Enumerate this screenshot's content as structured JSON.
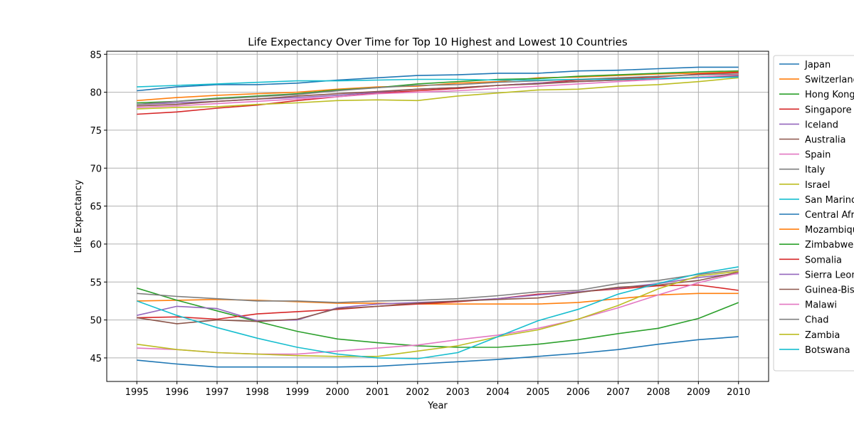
{
  "chart_data": {
    "type": "line",
    "title": "Life Expectancy Over Time for Top 10 Highest and Lowest 10 Countries",
    "xlabel": "Year",
    "ylabel": "Life Expectancy",
    "x": [
      1995,
      1996,
      1997,
      1998,
      1999,
      2000,
      2001,
      2002,
      2003,
      2004,
      2005,
      2006,
      2007,
      2008,
      2009,
      2010
    ],
    "xticks": [
      "1995",
      "1996",
      "1997",
      "1998",
      "1999",
      "2000",
      "2001",
      "2002",
      "2003",
      "2004",
      "2005",
      "2006",
      "2007",
      "2008",
      "2009",
      "2010"
    ],
    "yticks": [
      "45",
      "50",
      "55",
      "60",
      "65",
      "70",
      "75",
      "80",
      "85"
    ],
    "ylim": [
      41.9,
      85.4
    ],
    "grid": true,
    "legend": "outside-right",
    "series": [
      {
        "name": "Japan",
        "color": "#1f77b4",
        "values": [
          80.2,
          80.7,
          81.0,
          81.0,
          81.2,
          81.6,
          81.9,
          82.2,
          82.3,
          82.5,
          82.5,
          82.8,
          82.9,
          83.1,
          83.3,
          83.3
        ]
      },
      {
        "name": "Switzerland",
        "color": "#ff7f0e",
        "values": [
          78.9,
          79.3,
          79.6,
          79.8,
          80.0,
          80.4,
          80.7,
          80.8,
          81.2,
          81.4,
          81.9,
          82.0,
          82.2,
          82.4,
          82.5,
          82.7
        ]
      },
      {
        "name": "Hong Kong",
        "color": "#2ca02c",
        "values": [
          78.6,
          78.8,
          79.2,
          79.5,
          79.8,
          80.3,
          80.6,
          81.1,
          81.4,
          81.7,
          81.8,
          82.1,
          82.3,
          82.5,
          82.7,
          82.8
        ]
      },
      {
        "name": "Singapore",
        "color": "#d62728",
        "values": [
          77.1,
          77.4,
          77.9,
          78.3,
          78.9,
          79.4,
          79.9,
          80.2,
          80.5,
          80.9,
          81.2,
          81.6,
          81.8,
          82.0,
          82.4,
          82.6
        ]
      },
      {
        "name": "Iceland",
        "color": "#9467bd",
        "values": [
          78.4,
          78.6,
          78.8,
          79.1,
          79.3,
          79.6,
          80.0,
          80.4,
          80.6,
          80.9,
          81.2,
          81.4,
          81.6,
          81.8,
          82.0,
          82.1
        ]
      },
      {
        "name": "Australia",
        "color": "#8c564b",
        "values": [
          78.2,
          78.4,
          78.8,
          79.1,
          79.5,
          79.8,
          80.1,
          80.4,
          80.6,
          80.9,
          81.1,
          81.4,
          81.6,
          81.8,
          82.0,
          82.2
        ]
      },
      {
        "name": "Spain",
        "color": "#e377c2",
        "values": [
          78.0,
          78.2,
          78.5,
          78.8,
          79.1,
          79.4,
          79.8,
          80.0,
          80.2,
          80.5,
          80.8,
          81.1,
          81.4,
          81.7,
          82.0,
          82.3
        ]
      },
      {
        "name": "Italy",
        "color": "#7f7f7f",
        "values": [
          78.4,
          78.8,
          79.1,
          79.4,
          79.7,
          80.2,
          80.6,
          80.9,
          81.0,
          81.3,
          81.5,
          81.7,
          81.9,
          82.1,
          82.3,
          82.4
        ]
      },
      {
        "name": "Israel",
        "color": "#bcbd22",
        "values": [
          77.8,
          78.0,
          78.1,
          78.4,
          78.6,
          78.9,
          79.0,
          78.9,
          79.5,
          79.9,
          80.3,
          80.4,
          80.8,
          81.0,
          81.4,
          81.9
        ]
      },
      {
        "name": "San Marino",
        "color": "#17becf",
        "values": [
          80.7,
          80.9,
          81.1,
          81.3,
          81.5,
          81.5,
          81.6,
          81.7,
          81.7,
          81.6,
          81.6,
          81.7,
          81.7,
          81.8,
          81.9,
          82.0
        ]
      },
      {
        "name": "Central African Republic",
        "color": "#1f77b4",
        "values": [
          44.7,
          44.2,
          43.8,
          43.8,
          43.8,
          43.8,
          43.9,
          44.2,
          44.5,
          44.8,
          45.2,
          45.6,
          46.1,
          46.8,
          47.4,
          47.8
        ]
      },
      {
        "name": "Mozambique",
        "color": "#ff7f0e",
        "values": [
          52.5,
          52.6,
          52.7,
          52.6,
          52.4,
          52.2,
          52.2,
          52.1,
          52.1,
          52.1,
          52.1,
          52.3,
          52.8,
          53.3,
          53.5,
          53.5
        ]
      },
      {
        "name": "Zimbabwe",
        "color": "#2ca02c",
        "values": [
          54.2,
          52.6,
          51.2,
          49.8,
          48.5,
          47.5,
          47.0,
          46.6,
          46.4,
          46.4,
          46.8,
          47.4,
          48.2,
          48.9,
          50.2,
          52.3
        ]
      },
      {
        "name": "Somalia",
        "color": "#d62728",
        "values": [
          50.3,
          50.4,
          50.1,
          50.8,
          51.1,
          51.4,
          51.8,
          52.1,
          52.4,
          52.8,
          53.4,
          53.7,
          54.1,
          54.5,
          54.6,
          53.9
        ]
      },
      {
        "name": "Sierra Leone",
        "color": "#9467bd",
        "values": [
          50.6,
          51.8,
          51.5,
          49.9,
          50.0,
          51.6,
          52.1,
          52.3,
          52.5,
          52.8,
          53.3,
          53.7,
          54.2,
          54.8,
          55.6,
          56.1
        ]
      },
      {
        "name": "Guinea-Bissau",
        "color": "#8c564b",
        "values": [
          50.3,
          49.5,
          50.0,
          49.8,
          50.1,
          51.5,
          51.8,
          52.2,
          52.5,
          52.7,
          52.9,
          53.6,
          54.3,
          54.6,
          55.2,
          56.3
        ]
      },
      {
        "name": "Malawi",
        "color": "#e377c2",
        "values": [
          46.3,
          46.1,
          45.7,
          45.5,
          45.5,
          45.9,
          46.3,
          46.7,
          47.4,
          48.0,
          48.9,
          50.1,
          51.6,
          53.3,
          54.9,
          56.2
        ]
      },
      {
        "name": "Chad",
        "color": "#7f7f7f",
        "values": [
          53.5,
          53.1,
          52.8,
          52.5,
          52.5,
          52.3,
          52.5,
          52.6,
          52.8,
          53.2,
          53.7,
          53.9,
          54.8,
          55.2,
          56.0,
          56.6
        ]
      },
      {
        "name": "Zambia",
        "color": "#bcbd22",
        "values": [
          46.8,
          46.1,
          45.7,
          45.5,
          45.3,
          45.2,
          45.2,
          45.9,
          46.6,
          47.8,
          48.7,
          50.1,
          51.9,
          54.1,
          55.8,
          56.4
        ]
      },
      {
        "name": "Botswana",
        "color": "#17becf",
        "values": [
          52.5,
          50.6,
          49.0,
          47.6,
          46.4,
          45.5,
          45.0,
          44.9,
          45.7,
          47.8,
          49.9,
          51.4,
          53.4,
          54.8,
          56.1,
          57.0
        ]
      }
    ]
  }
}
